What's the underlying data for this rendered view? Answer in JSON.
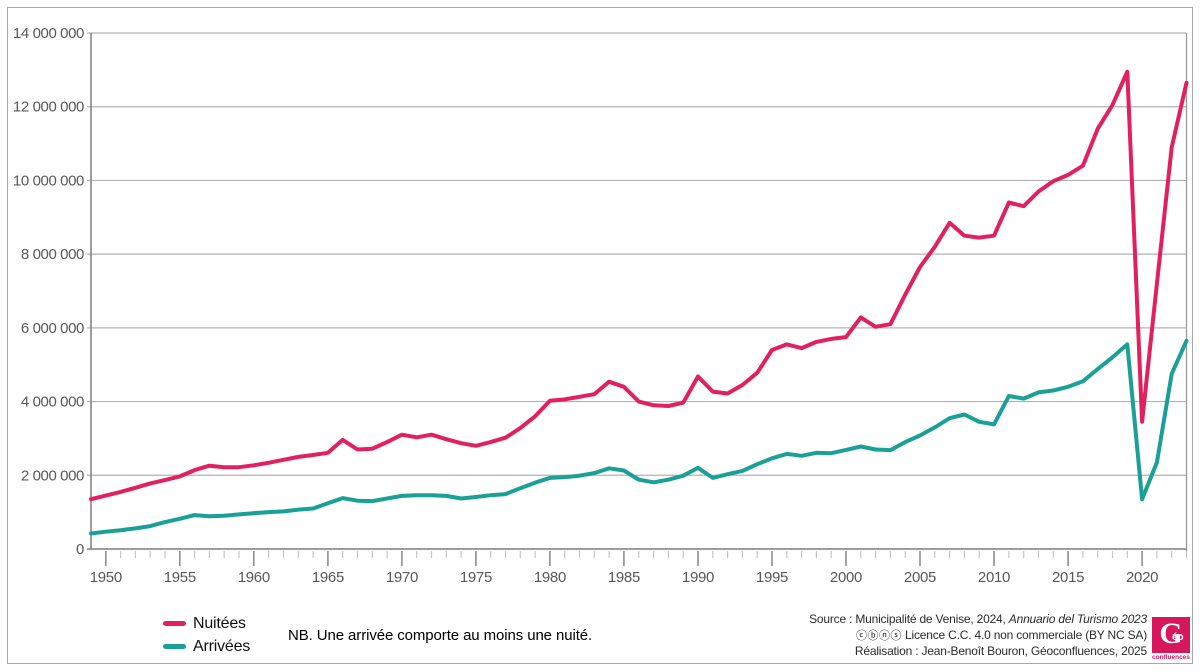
{
  "chart_data": {
    "type": "line",
    "title": "",
    "xlabel": "",
    "ylabel": "",
    "xlim": [
      1949,
      2023
    ],
    "ylim": [
      0,
      14000000
    ],
    "ytick_step": 2000000,
    "ytick_labels": [
      "0",
      "2 000 000",
      "4 000 000",
      "6 000 000",
      "8 000 000",
      "10 000 000",
      "12 000 000",
      "14 000 000"
    ],
    "xtick_labels": [
      "1950",
      "1955",
      "1960",
      "1965",
      "1970",
      "1975",
      "1980",
      "1985",
      "1990",
      "1995",
      "2000",
      "2005",
      "2010",
      "2015",
      "2020"
    ],
    "grid": true,
    "legend_position": "bottom-left",
    "colors": {
      "grid": "#b3b3b3",
      "axis": "#7d7d7d",
      "plot_border": "#9b9b9b",
      "tick_minor": "#c4c4c4",
      "tick_major": "#8f8f8f"
    },
    "x": [
      1949,
      1950,
      1951,
      1952,
      1953,
      1954,
      1955,
      1956,
      1957,
      1958,
      1959,
      1960,
      1961,
      1962,
      1963,
      1964,
      1965,
      1966,
      1967,
      1968,
      1969,
      1970,
      1971,
      1972,
      1973,
      1974,
      1975,
      1976,
      1977,
      1978,
      1979,
      1980,
      1981,
      1982,
      1983,
      1984,
      1985,
      1986,
      1987,
      1988,
      1989,
      1990,
      1991,
      1992,
      1993,
      1994,
      1995,
      1996,
      1997,
      1998,
      1999,
      2000,
      2001,
      2002,
      2003,
      2004,
      2005,
      2006,
      2007,
      2008,
      2009,
      2010,
      2011,
      2012,
      2013,
      2014,
      2015,
      2016,
      2017,
      2018,
      2019,
      2020,
      2021,
      2022,
      2023
    ],
    "series": [
      {
        "name": "Nuitées",
        "color": "#e2205f",
        "values": [
          1350000,
          1450000,
          1550000,
          1660000,
          1780000,
          1870000,
          1970000,
          2140000,
          2260000,
          2220000,
          2220000,
          2270000,
          2340000,
          2420000,
          2500000,
          2550000,
          2610000,
          2960000,
          2700000,
          2720000,
          2900000,
          3100000,
          3030000,
          3100000,
          2980000,
          2870000,
          2800000,
          2900000,
          3020000,
          3280000,
          3600000,
          4020000,
          4060000,
          4130000,
          4200000,
          4540000,
          4400000,
          4000000,
          3900000,
          3880000,
          3970000,
          4680000,
          4270000,
          4220000,
          4450000,
          4780000,
          5400000,
          5550000,
          5450000,
          5620000,
          5700000,
          5750000,
          6280000,
          6030000,
          6100000,
          6900000,
          7650000,
          8200000,
          8850000,
          8500000,
          8450000,
          8500000,
          9400000,
          9300000,
          9700000,
          9980000,
          10150000,
          10400000,
          11400000,
          12050000,
          12950000,
          3450000,
          7200000,
          10900000,
          12650000
        ]
      },
      {
        "name": "Arrivées",
        "color": "#1aa096",
        "values": [
          420000,
          470000,
          510000,
          560000,
          620000,
          730000,
          820000,
          920000,
          890000,
          900000,
          940000,
          970000,
          1000000,
          1020000,
          1070000,
          1100000,
          1240000,
          1380000,
          1310000,
          1300000,
          1370000,
          1440000,
          1460000,
          1460000,
          1440000,
          1370000,
          1410000,
          1460000,
          1490000,
          1650000,
          1800000,
          1930000,
          1950000,
          1990000,
          2060000,
          2190000,
          2130000,
          1880000,
          1810000,
          1880000,
          1990000,
          2200000,
          1930000,
          2030000,
          2120000,
          2300000,
          2460000,
          2580000,
          2530000,
          2610000,
          2600000,
          2690000,
          2780000,
          2700000,
          2680000,
          2900000,
          3080000,
          3300000,
          3550000,
          3650000,
          3450000,
          3380000,
          4150000,
          4080000,
          4250000,
          4300000,
          4400000,
          4550000,
          4880000,
          5200000,
          5550000,
          1350000,
          2350000,
          4750000,
          5650000
        ]
      }
    ]
  },
  "legend": {
    "items": [
      {
        "label": "Nuitées"
      },
      {
        "label": "Arrivées"
      }
    ]
  },
  "note": "NB. Une arrivée comporte au moins une nuité.",
  "source": {
    "line1_prefix": "Source : Municipalité de Venise, 2024, ",
    "line1_italic": "Annuario del Turismo 2023",
    "license_icons": "ⓒⓑⓝⓢ",
    "line2": "Licence C.C. 4.0 non commerciale (BY NC SA)",
    "line3": "Réalisation : Jean-Benoît Bouron, Géoconfluences, 2025"
  },
  "logo": {
    "letter": "G",
    "accent": "éo",
    "sub": "confluences"
  }
}
